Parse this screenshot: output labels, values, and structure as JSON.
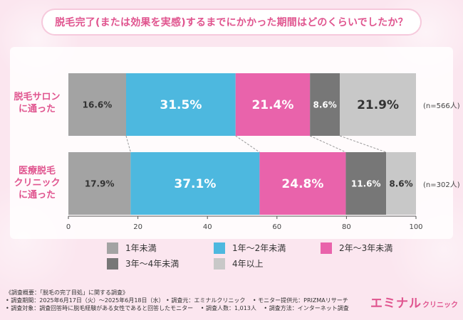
{
  "title": "脱毛完了(または効果を実感)するまでにかかった期間はどのくらいでしたか？",
  "chart_data": {
    "type": "bar",
    "orientation": "horizontal",
    "stacked": true,
    "categories": [
      "脱毛サロンに通った",
      "医療脱毛クリニックに通った"
    ],
    "category_lines": [
      [
        "脱毛サロン",
        "に通った"
      ],
      [
        "医療脱毛",
        "クリニック",
        "に通った"
      ]
    ],
    "sample_sizes": [
      "(n=566人)",
      "(n=302人)"
    ],
    "series": [
      {
        "name": "1年未満",
        "color": "#a3a3a3",
        "values": [
          16.6,
          17.9
        ],
        "labels": [
          "16.6%",
          "17.9%"
        ]
      },
      {
        "name": "1年～2年未満",
        "color": "#4db8df",
        "values": [
          31.5,
          37.1
        ],
        "labels": [
          "31.5%",
          "37.1%"
        ]
      },
      {
        "name": "2年～3年未満",
        "color": "#e963ab",
        "values": [
          21.4,
          24.8
        ],
        "labels": [
          "21.4%",
          "24.8%"
        ]
      },
      {
        "name": "3年～4年未満",
        "color": "#777777",
        "values": [
          8.6,
          11.6
        ],
        "labels": [
          "8.6%",
          "11.6%"
        ]
      },
      {
        "name": "4年以上",
        "color": "#c8c8c8",
        "values": [
          21.9,
          8.6
        ],
        "labels": [
          "21.9%",
          "8.6%"
        ]
      }
    ],
    "xlim": [
      0,
      100
    ],
    "xticks": [
      "0",
      "20",
      "40",
      "60",
      "80",
      "100"
    ],
    "legend_position": "bottom"
  },
  "footer": {
    "lines": [
      "《調査概要：「脱毛の完了目処」に関する調査》",
      "• 調査期間：2025年6月17日（火）～2025年6月18日（水） • 調査元：エミナルクリニック 　• モニター提供元：PRIZMAリサーチ",
      "• 調査対象：調査回答時に脱毛経験がある女性であると回答したモニター 　• 調査人数：1,013人 　• 調査方法：インターネット調査"
    ]
  },
  "brand": {
    "main": "エミナル",
    "sub": "クリニック"
  }
}
